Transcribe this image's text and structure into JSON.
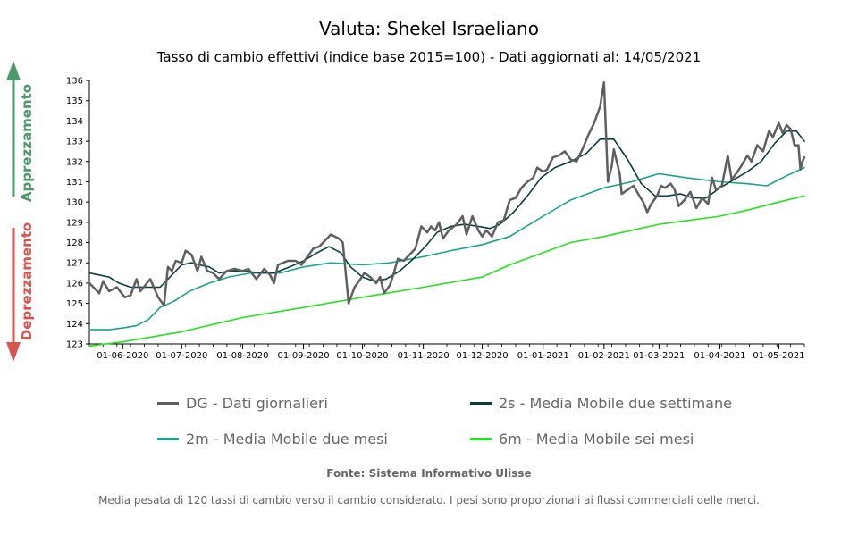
{
  "header": {
    "title": "Valuta: Shekel Israeliano",
    "subtitle": "Tasso di cambio effettivi (indice base 2015=100) - Dati aggiornati al: 14/05/2021"
  },
  "side": {
    "up_label": "Apprezzamento",
    "down_label": "Deprezzamento",
    "up_color": "#4c9a6a",
    "down_color": "#d9534f"
  },
  "legend": [
    {
      "label": "DG - Dati giornalieri",
      "color": "#5f5f5f"
    },
    {
      "label": "2s - Media Mobile due settimane",
      "color": "#0b3d3a"
    },
    {
      "label": "2m - Media Mobile due mesi",
      "color": "#17a589"
    },
    {
      "label": "6m - Media Mobile sei mesi",
      "color": "#22e31c"
    }
  ],
  "footer": {
    "source": "Fonte: Sistema Informativo Ulisse",
    "note": "Media pesata di 120 tassi di cambio verso il cambio considerato. I pesi sono proporzionali ai flussi commerciali delle merci."
  },
  "chart_data": {
    "type": "line",
    "x_range": [
      "2020-05-15",
      "2021-05-14"
    ],
    "ylim": [
      123,
      136
    ],
    "yticks": [
      123,
      124,
      125,
      126,
      127,
      128,
      129,
      130,
      131,
      132,
      133,
      134,
      135,
      136
    ],
    "xticks": [
      {
        "date": "2020-06-01",
        "label": "01-06-2020"
      },
      {
        "date": "2020-07-01",
        "label": "01-07-2020"
      },
      {
        "date": "2020-08-01",
        "label": "01-08-2020"
      },
      {
        "date": "2020-09-01",
        "label": "01-09-2020"
      },
      {
        "date": "2020-10-01",
        "label": "01-10-2020"
      },
      {
        "date": "2020-11-01",
        "label": "01-11-2020"
      },
      {
        "date": "2020-12-01",
        "label": "01-12-2020"
      },
      {
        "date": "2021-01-01",
        "label": "01-01-2021"
      },
      {
        "date": "2021-02-01",
        "label": "01-02-2021"
      },
      {
        "date": "2021-03-01",
        "label": "01-03-2021"
      },
      {
        "date": "2021-04-01",
        "label": "01-04-2021"
      },
      {
        "date": "2021-05-01",
        "label": "01-05-2021"
      }
    ],
    "series": [
      {
        "name": "DG - Dati giornalieri",
        "color": "#5f5f5f",
        "width": 2.5,
        "points": [
          [
            "2020-05-15",
            126.0
          ],
          [
            "2020-05-20",
            125.5
          ],
          [
            "2020-05-22",
            126.1
          ],
          [
            "2020-05-25",
            125.6
          ],
          [
            "2020-05-29",
            125.8
          ],
          [
            "2020-06-02",
            125.3
          ],
          [
            "2020-06-05",
            125.4
          ],
          [
            "2020-06-08",
            126.2
          ],
          [
            "2020-06-10",
            125.6
          ],
          [
            "2020-06-15",
            126.2
          ],
          [
            "2020-06-19",
            125.3
          ],
          [
            "2020-06-22",
            124.9
          ],
          [
            "2020-06-24",
            126.8
          ],
          [
            "2020-06-26",
            126.6
          ],
          [
            "2020-06-28",
            127.1
          ],
          [
            "2020-07-01",
            127.0
          ],
          [
            "2020-07-03",
            127.6
          ],
          [
            "2020-07-06",
            127.4
          ],
          [
            "2020-07-09",
            126.6
          ],
          [
            "2020-07-11",
            127.3
          ],
          [
            "2020-07-14",
            126.6
          ],
          [
            "2020-07-17",
            126.5
          ],
          [
            "2020-07-20",
            126.2
          ],
          [
            "2020-07-24",
            126.6
          ],
          [
            "2020-07-28",
            126.7
          ],
          [
            "2020-08-01",
            126.6
          ],
          [
            "2020-08-04",
            126.7
          ],
          [
            "2020-08-08",
            126.2
          ],
          [
            "2020-08-12",
            126.7
          ],
          [
            "2020-08-15",
            126.4
          ],
          [
            "2020-08-17",
            126.0
          ],
          [
            "2020-08-19",
            126.9
          ],
          [
            "2020-08-24",
            127.1
          ],
          [
            "2020-08-28",
            127.1
          ],
          [
            "2020-08-31",
            126.9
          ],
          [
            "2020-09-03",
            127.3
          ],
          [
            "2020-09-06",
            127.7
          ],
          [
            "2020-09-09",
            127.8
          ],
          [
            "2020-09-12",
            128.1
          ],
          [
            "2020-09-15",
            128.4
          ],
          [
            "2020-09-19",
            128.2
          ],
          [
            "2020-09-21",
            128.0
          ],
          [
            "2020-09-24",
            125.0
          ],
          [
            "2020-09-27",
            125.8
          ],
          [
            "2020-09-30",
            126.2
          ],
          [
            "2020-10-02",
            126.5
          ],
          [
            "2020-10-05",
            126.3
          ],
          [
            "2020-10-08",
            126.0
          ],
          [
            "2020-10-10",
            126.3
          ],
          [
            "2020-10-12",
            125.5
          ],
          [
            "2020-10-15",
            125.9
          ],
          [
            "2020-10-17",
            126.5
          ],
          [
            "2020-10-19",
            127.2
          ],
          [
            "2020-10-22",
            127.1
          ],
          [
            "2020-10-25",
            127.4
          ],
          [
            "2020-10-28",
            127.7
          ],
          [
            "2020-10-31",
            128.8
          ],
          [
            "2020-11-03",
            128.5
          ],
          [
            "2020-11-05",
            128.8
          ],
          [
            "2020-11-07",
            128.6
          ],
          [
            "2020-11-09",
            129.0
          ],
          [
            "2020-11-11",
            128.2
          ],
          [
            "2020-11-14",
            128.6
          ],
          [
            "2020-11-18",
            128.9
          ],
          [
            "2020-11-21",
            129.3
          ],
          [
            "2020-11-23",
            128.4
          ],
          [
            "2020-11-26",
            129.3
          ],
          [
            "2020-11-29",
            128.6
          ],
          [
            "2020-12-01",
            128.3
          ],
          [
            "2020-12-03",
            128.6
          ],
          [
            "2020-12-06",
            128.3
          ],
          [
            "2020-12-09",
            129.0
          ],
          [
            "2020-12-12",
            129.1
          ],
          [
            "2020-12-15",
            130.1
          ],
          [
            "2020-12-18",
            130.2
          ],
          [
            "2020-12-21",
            130.7
          ],
          [
            "2020-12-24",
            131.0
          ],
          [
            "2020-12-27",
            131.2
          ],
          [
            "2020-12-29",
            131.7
          ],
          [
            "2021-01-01",
            131.5
          ],
          [
            "2021-01-03",
            131.6
          ],
          [
            "2021-01-06",
            132.2
          ],
          [
            "2021-01-09",
            132.3
          ],
          [
            "2021-01-12",
            132.5
          ],
          [
            "2021-01-15",
            132.1
          ],
          [
            "2021-01-18",
            132.0
          ],
          [
            "2021-01-21",
            132.6
          ],
          [
            "2021-01-24",
            133.3
          ],
          [
            "2021-01-27",
            133.9
          ],
          [
            "2021-01-30",
            134.7
          ],
          [
            "2021-02-01",
            135.9
          ],
          [
            "2021-02-03",
            131.0
          ],
          [
            "2021-02-05",
            131.8
          ],
          [
            "2021-02-06",
            132.6
          ],
          [
            "2021-02-09",
            131.4
          ],
          [
            "2021-02-10",
            130.4
          ],
          [
            "2021-02-13",
            130.6
          ],
          [
            "2021-02-16",
            130.8
          ],
          [
            "2021-02-19",
            130.3
          ],
          [
            "2021-02-21",
            130.0
          ],
          [
            "2021-02-23",
            129.5
          ],
          [
            "2021-02-25",
            129.9
          ],
          [
            "2021-02-28",
            130.3
          ],
          [
            "2021-03-02",
            130.8
          ],
          [
            "2021-03-04",
            130.7
          ],
          [
            "2021-03-07",
            130.9
          ],
          [
            "2021-03-09",
            130.6
          ],
          [
            "2021-03-11",
            129.8
          ],
          [
            "2021-03-14",
            130.1
          ],
          [
            "2021-03-17",
            130.5
          ],
          [
            "2021-03-20",
            129.7
          ],
          [
            "2021-03-23",
            130.2
          ],
          [
            "2021-03-26",
            129.9
          ],
          [
            "2021-03-28",
            131.2
          ],
          [
            "2021-03-30",
            130.6
          ],
          [
            "2021-04-02",
            130.8
          ],
          [
            "2021-04-05",
            132.3
          ],
          [
            "2021-04-07",
            131.1
          ],
          [
            "2021-04-10",
            131.5
          ],
          [
            "2021-04-12",
            131.8
          ],
          [
            "2021-04-15",
            132.3
          ],
          [
            "2021-04-17",
            132.0
          ],
          [
            "2021-04-20",
            132.8
          ],
          [
            "2021-04-23",
            132.5
          ],
          [
            "2021-04-26",
            133.5
          ],
          [
            "2021-04-28",
            133.2
          ],
          [
            "2021-05-01",
            133.9
          ],
          [
            "2021-05-03",
            133.4
          ],
          [
            "2021-05-05",
            133.8
          ],
          [
            "2021-05-07",
            133.6
          ],
          [
            "2021-05-09",
            132.8
          ],
          [
            "2021-05-11",
            132.8
          ],
          [
            "2021-05-12",
            131.6
          ],
          [
            "2021-05-13",
            132.0
          ],
          [
            "2021-05-14",
            132.2
          ]
        ]
      },
      {
        "name": "2s - Media Mobile due settimane",
        "color": "#0b3d3a",
        "width": 1.6,
        "points": [
          [
            "2020-05-15",
            126.5
          ],
          [
            "2020-05-20",
            126.4
          ],
          [
            "2020-05-25",
            126.3
          ],
          [
            "2020-05-30",
            126.0
          ],
          [
            "2020-06-05",
            125.8
          ],
          [
            "2020-06-10",
            125.8
          ],
          [
            "2020-06-15",
            125.8
          ],
          [
            "2020-06-20",
            125.8
          ],
          [
            "2020-06-25",
            126.3
          ],
          [
            "2020-07-01",
            126.9
          ],
          [
            "2020-07-06",
            127.0
          ],
          [
            "2020-07-10",
            126.9
          ],
          [
            "2020-07-15",
            126.8
          ],
          [
            "2020-07-20",
            126.5
          ],
          [
            "2020-07-25",
            126.6
          ],
          [
            "2020-08-01",
            126.6
          ],
          [
            "2020-08-10",
            126.5
          ],
          [
            "2020-08-17",
            126.5
          ],
          [
            "2020-08-25",
            126.8
          ],
          [
            "2020-09-01",
            127.1
          ],
          [
            "2020-09-08",
            127.5
          ],
          [
            "2020-09-14",
            127.8
          ],
          [
            "2020-09-20",
            127.5
          ],
          [
            "2020-09-25",
            126.8
          ],
          [
            "2020-10-01",
            126.3
          ],
          [
            "2020-10-07",
            126.1
          ],
          [
            "2020-10-13",
            126.2
          ],
          [
            "2020-10-20",
            126.6
          ],
          [
            "2020-10-27",
            127.2
          ],
          [
            "2020-11-02",
            127.8
          ],
          [
            "2020-11-08",
            128.5
          ],
          [
            "2020-11-15",
            128.8
          ],
          [
            "2020-11-22",
            128.9
          ],
          [
            "2020-11-29",
            128.8
          ],
          [
            "2020-12-05",
            128.7
          ],
          [
            "2020-12-10",
            128.9
          ],
          [
            "2020-12-17",
            129.5
          ],
          [
            "2020-12-24",
            130.3
          ],
          [
            "2020-12-31",
            131.2
          ],
          [
            "2021-01-07",
            131.7
          ],
          [
            "2021-01-15",
            132.0
          ],
          [
            "2021-01-23",
            132.4
          ],
          [
            "2021-01-30",
            133.1
          ],
          [
            "2021-02-06",
            133.1
          ],
          [
            "2021-02-13",
            132.1
          ],
          [
            "2021-02-20",
            130.9
          ],
          [
            "2021-02-27",
            130.3
          ],
          [
            "2021-03-05",
            130.3
          ],
          [
            "2021-03-12",
            130.4
          ],
          [
            "2021-03-18",
            130.2
          ],
          [
            "2021-03-25",
            130.2
          ],
          [
            "2021-04-01",
            130.7
          ],
          [
            "2021-04-08",
            131.1
          ],
          [
            "2021-04-15",
            131.5
          ],
          [
            "2021-04-22",
            132.0
          ],
          [
            "2021-04-29",
            132.9
          ],
          [
            "2021-05-05",
            133.5
          ],
          [
            "2021-05-10",
            133.5
          ],
          [
            "2021-05-14",
            133.0
          ]
        ]
      },
      {
        "name": "2m - Media Mobile due mesi",
        "color": "#17a589",
        "width": 1.6,
        "points": [
          [
            "2020-05-15",
            123.7
          ],
          [
            "2020-05-25",
            123.7
          ],
          [
            "2020-06-02",
            123.8
          ],
          [
            "2020-06-08",
            123.9
          ],
          [
            "2020-06-14",
            124.2
          ],
          [
            "2020-06-20",
            124.8
          ],
          [
            "2020-06-27",
            125.1
          ],
          [
            "2020-07-05",
            125.6
          ],
          [
            "2020-07-15",
            126.0
          ],
          [
            "2020-07-25",
            126.3
          ],
          [
            "2020-08-05",
            126.5
          ],
          [
            "2020-08-20",
            126.5
          ],
          [
            "2020-09-01",
            126.8
          ],
          [
            "2020-09-15",
            127.0
          ],
          [
            "2020-10-01",
            126.9
          ],
          [
            "2020-10-15",
            127.0
          ],
          [
            "2020-11-01",
            127.3
          ],
          [
            "2020-11-15",
            127.6
          ],
          [
            "2020-12-01",
            127.9
          ],
          [
            "2020-12-15",
            128.3
          ],
          [
            "2021-01-01",
            129.3
          ],
          [
            "2021-01-15",
            130.1
          ],
          [
            "2021-02-01",
            130.7
          ],
          [
            "2021-02-15",
            131.0
          ],
          [
            "2021-03-01",
            131.4
          ],
          [
            "2021-03-15",
            131.2
          ],
          [
            "2021-04-01",
            131.0
          ],
          [
            "2021-04-15",
            130.9
          ],
          [
            "2021-04-25",
            130.8
          ],
          [
            "2021-05-05",
            131.3
          ],
          [
            "2021-05-14",
            131.7
          ]
        ]
      },
      {
        "name": "6m - Media Mobile sei mesi",
        "color": "#22e31c",
        "width": 1.6,
        "points": [
          [
            "2020-05-15",
            122.9
          ],
          [
            "2020-06-01",
            123.1
          ],
          [
            "2020-07-01",
            123.6
          ],
          [
            "2020-08-01",
            124.3
          ],
          [
            "2020-09-01",
            124.8
          ],
          [
            "2020-10-01",
            125.3
          ],
          [
            "2020-11-01",
            125.8
          ],
          [
            "2020-12-01",
            126.3
          ],
          [
            "2020-12-15",
            126.9
          ],
          [
            "2021-01-01",
            127.5
          ],
          [
            "2021-01-15",
            128.0
          ],
          [
            "2021-02-01",
            128.3
          ],
          [
            "2021-03-01",
            128.9
          ],
          [
            "2021-04-01",
            129.3
          ],
          [
            "2021-04-15",
            129.6
          ],
          [
            "2021-05-01",
            130.0
          ],
          [
            "2021-05-14",
            130.3
          ]
        ]
      }
    ]
  }
}
